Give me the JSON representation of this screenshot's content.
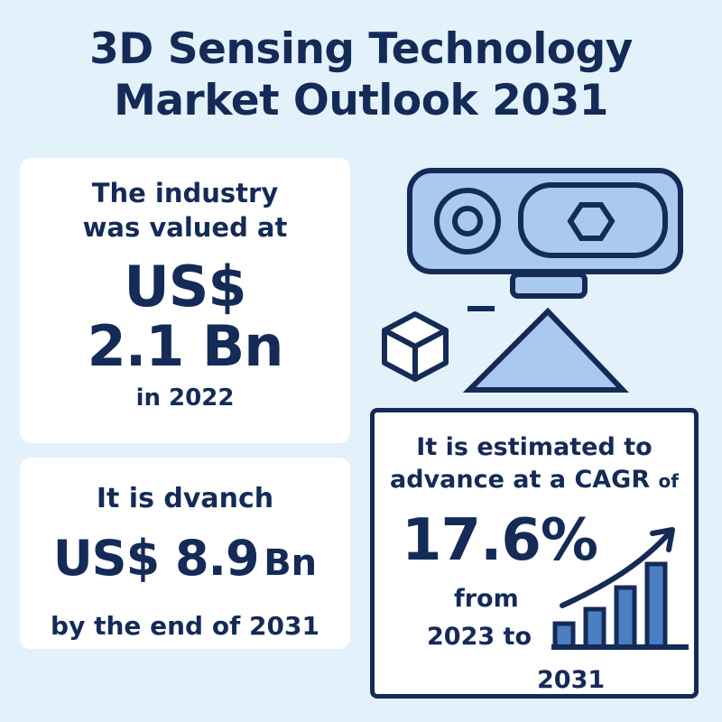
{
  "title": {
    "line1": "3D Sensing Technology",
    "line2": "Market Outlook 2031"
  },
  "card_value_2022": {
    "line1": "The industry",
    "line2": "was valued at",
    "currency": "US$",
    "amount": "2.1 Bn",
    "year": "in 2022"
  },
  "card_value_2031": {
    "line1": "It is dvanch",
    "currency_amount": "US$ 8.9",
    "unit": "Bn",
    "line3": "by the end of 2031"
  },
  "card_cagr": {
    "line1": "It is estimated to",
    "line2": "advance at a CAGR",
    "line2_suffix": "of",
    "percent": "17.6%",
    "line3": "from",
    "line4": "2023 to",
    "line5": "2031"
  },
  "icons": [
    "3d-camera-sensor-icon",
    "cube-icon",
    "growth-bar-chart-icon",
    "trend-arrow-icon"
  ],
  "colors": {
    "background": "#e3f1fb",
    "text": "#142b57",
    "card": "#ffffff",
    "icon_fill": "#a9c9ee",
    "bar_fill": "#4a7fc1"
  }
}
